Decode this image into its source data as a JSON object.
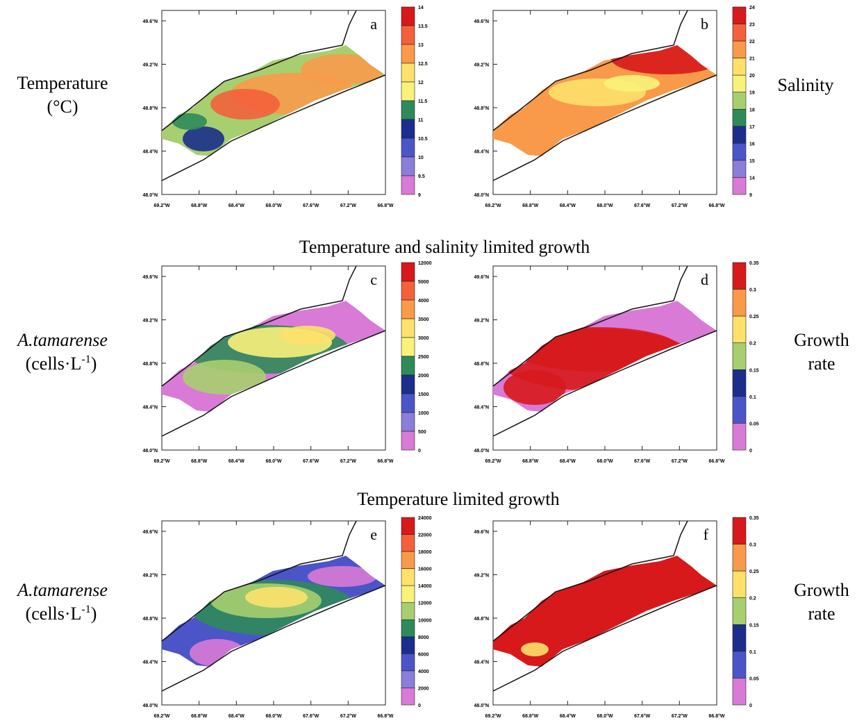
{
  "lat_labels": [
    "49.6°N",
    "49.2°N",
    "48.8°N",
    "48.4°N",
    "48.0°N"
  ],
  "lon_labels": [
    "69.2°W",
    "68.8°W",
    "68.4°W",
    "68.0°W",
    "67.6°W",
    "67.2°W",
    "66.8°W"
  ],
  "section_titles": [
    "Temperature and salinity limited growth",
    "Temperature limited growth"
  ],
  "side_labels": {
    "temperature": [
      "Temperature",
      "(°C)"
    ],
    "salinity": "Salinity",
    "cells_left_1": {
      "name": "A.tamarense",
      "unit": "(cells·L",
      "sup": "-1",
      "close": ")"
    },
    "cells_left_2": {
      "name": "A.tamarense",
      "unit": "(cells·L",
      "sup": "-1",
      "close": ")"
    },
    "growth_1": [
      "Growth",
      "rate"
    ],
    "growth_2": [
      "Growth",
      "rate"
    ]
  },
  "palette": [
    "#d7191c",
    "#f4603c",
    "#f89a4a",
    "#fde16a",
    "#f8f27a",
    "#a7cf6f",
    "#2f8a5a",
    "#1c2d8c",
    "#4b55c8",
    "#8a7ed8",
    "#d97ad6"
  ],
  "panels": [
    {
      "letter": "a",
      "colorbar": [
        "14",
        "13.5",
        "13",
        "12.5",
        "12",
        "11.5",
        "11",
        "10.5",
        "10",
        "9.5",
        "9"
      ]
    },
    {
      "letter": "b",
      "colorbar": [
        "24",
        "23",
        "22",
        "21",
        "20",
        "19",
        "18",
        "17",
        "16",
        "15",
        "14",
        "9"
      ]
    },
    {
      "letter": "c",
      "colorbar": [
        "12000",
        "5000",
        "4000",
        "3500",
        "3000",
        "2500",
        "2000",
        "1500",
        "1000",
        "500",
        "0"
      ]
    },
    {
      "letter": "d",
      "colorbar": [
        "0.35",
        "0.3",
        "0.25",
        "0.2",
        "0.15",
        "0.1",
        "0.05",
        "0"
      ]
    },
    {
      "letter": "e",
      "colorbar": [
        "24000",
        "22000",
        "18000",
        "16000",
        "14000",
        "12000",
        "10000",
        "8000",
        "6000",
        "4000",
        "2000",
        "0"
      ]
    },
    {
      "letter": "f",
      "colorbar": [
        "0.35",
        "0.3",
        "0.25",
        "0.2",
        "0.15",
        "0.1",
        "0.05",
        "0"
      ]
    }
  ]
}
